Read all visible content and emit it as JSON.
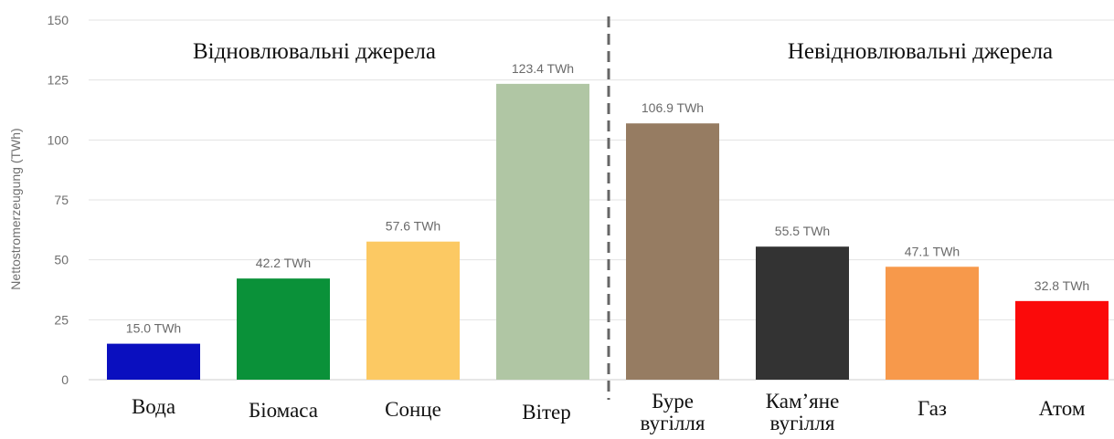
{
  "chart_data": {
    "type": "bar",
    "categories": [
      [
        "Вода"
      ],
      [
        "Біомаса"
      ],
      [
        "Сонце"
      ],
      [
        "Вітер"
      ],
      [
        "Буре",
        "вугілля"
      ],
      [
        "Кам’яне",
        "вугілля"
      ],
      [
        "Газ"
      ],
      [
        "Атом"
      ]
    ],
    "values": [
      15.0,
      42.2,
      57.6,
      123.4,
      106.9,
      55.5,
      47.1,
      32.8
    ],
    "data_labels": [
      "15.0 TWh",
      "42.2 TWh",
      "57.6 TWh",
      "123.4 TWh",
      "106.9 TWh",
      "55.5 TWh",
      "47.1 TWh",
      "32.8 TWh"
    ],
    "colors": [
      "#0a0fbf",
      "#0a9139",
      "#fcc963",
      "#b0c6a4",
      "#967c62",
      "#333333",
      "#f7994b",
      "#fb0a0a"
    ],
    "ylabel": "Nettostromerzeugung (TWh)",
    "ylim": [
      0,
      150
    ],
    "yticks": [
      0,
      25,
      50,
      75,
      100,
      125,
      150
    ],
    "grid": true,
    "group_labels": [
      "Відновлювальні джерела",
      "Невідновлювальні джерела"
    ],
    "divider_after_index": 3
  }
}
